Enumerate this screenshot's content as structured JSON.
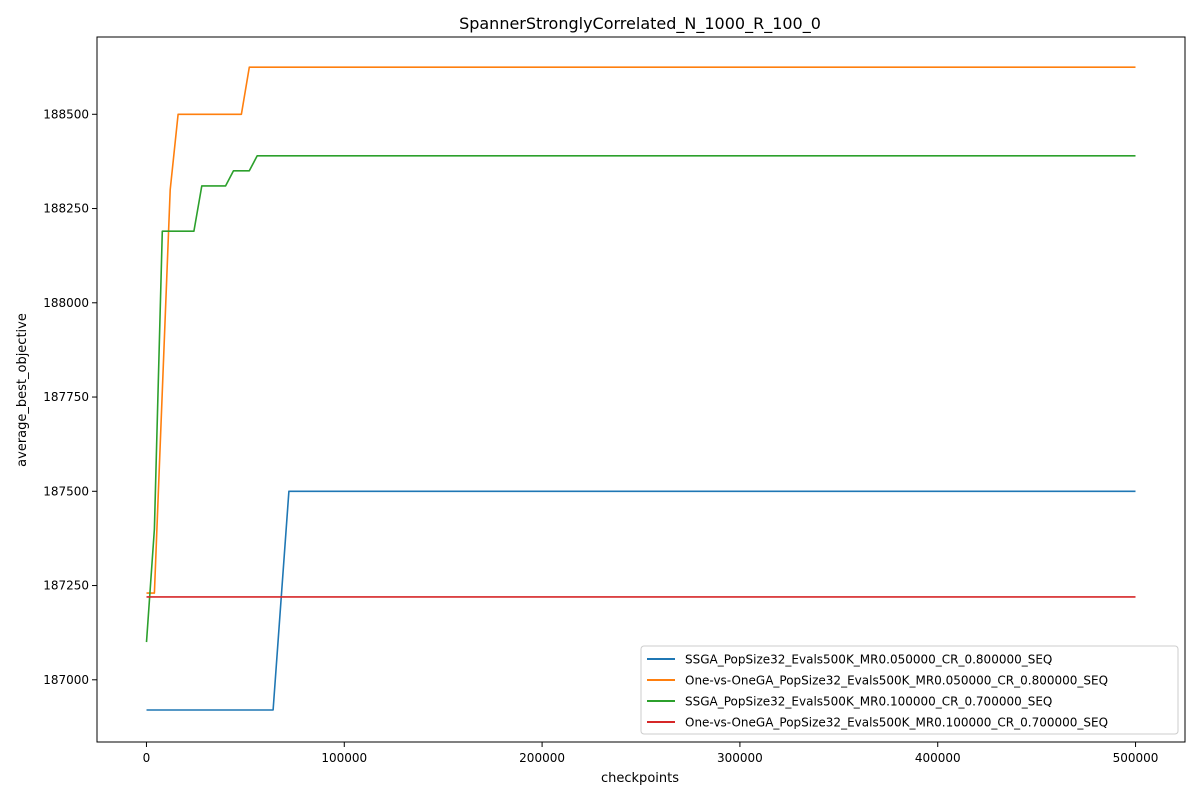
{
  "chart_data": {
    "type": "line",
    "title": "SpannerStronglyCorrelated_N_1000_R_100_0",
    "xlabel": "checkpoints",
    "ylabel": "average_best_objective",
    "xlim": [
      -25000,
      525000
    ],
    "ylim": [
      186835,
      188705
    ],
    "x_ticks": [
      0,
      100000,
      200000,
      300000,
      400000,
      500000
    ],
    "x_tick_labels": [
      "0",
      "100000",
      "200000",
      "300000",
      "400000",
      "500000"
    ],
    "y_ticks": [
      187000,
      187250,
      187500,
      187750,
      188000,
      188250,
      188500
    ],
    "y_tick_labels": [
      "187000",
      "187250",
      "187500",
      "187750",
      "188000",
      "188250",
      "188500"
    ],
    "grid": false,
    "legend_position": "bottom-right",
    "series": [
      {
        "name": "SSGA_PopSize32_Evals500K_MR0.050000_CR_0.800000_SEQ",
        "color": "#1f77b4",
        "x": [
          0,
          64000,
          72000,
          500000
        ],
        "y": [
          186920,
          186920,
          187500,
          187500
        ]
      },
      {
        "name": "One-vs-OneGA_PopSize32_Evals500K_MR0.050000_CR_0.800000_SEQ",
        "color": "#ff7f0e",
        "x": [
          0,
          4000,
          12000,
          16000,
          48000,
          52000,
          500000
        ],
        "y": [
          187230,
          187230,
          188300,
          188500,
          188500,
          188625,
          188625
        ]
      },
      {
        "name": "SSGA_PopSize32_Evals500K_MR0.100000_CR_0.700000_SEQ",
        "color": "#2ca02c",
        "x": [
          0,
          4000,
          8000,
          24000,
          28000,
          40000,
          44000,
          52000,
          56000,
          500000
        ],
        "y": [
          187100,
          187400,
          188190,
          188190,
          188310,
          188310,
          188350,
          188350,
          188390,
          188390
        ]
      },
      {
        "name": "One-vs-OneGA_PopSize32_Evals500K_MR0.100000_CR_0.700000_SEQ",
        "color": "#d62728",
        "x": [
          0,
          500000
        ],
        "y": [
          187220,
          187220
        ]
      }
    ]
  }
}
